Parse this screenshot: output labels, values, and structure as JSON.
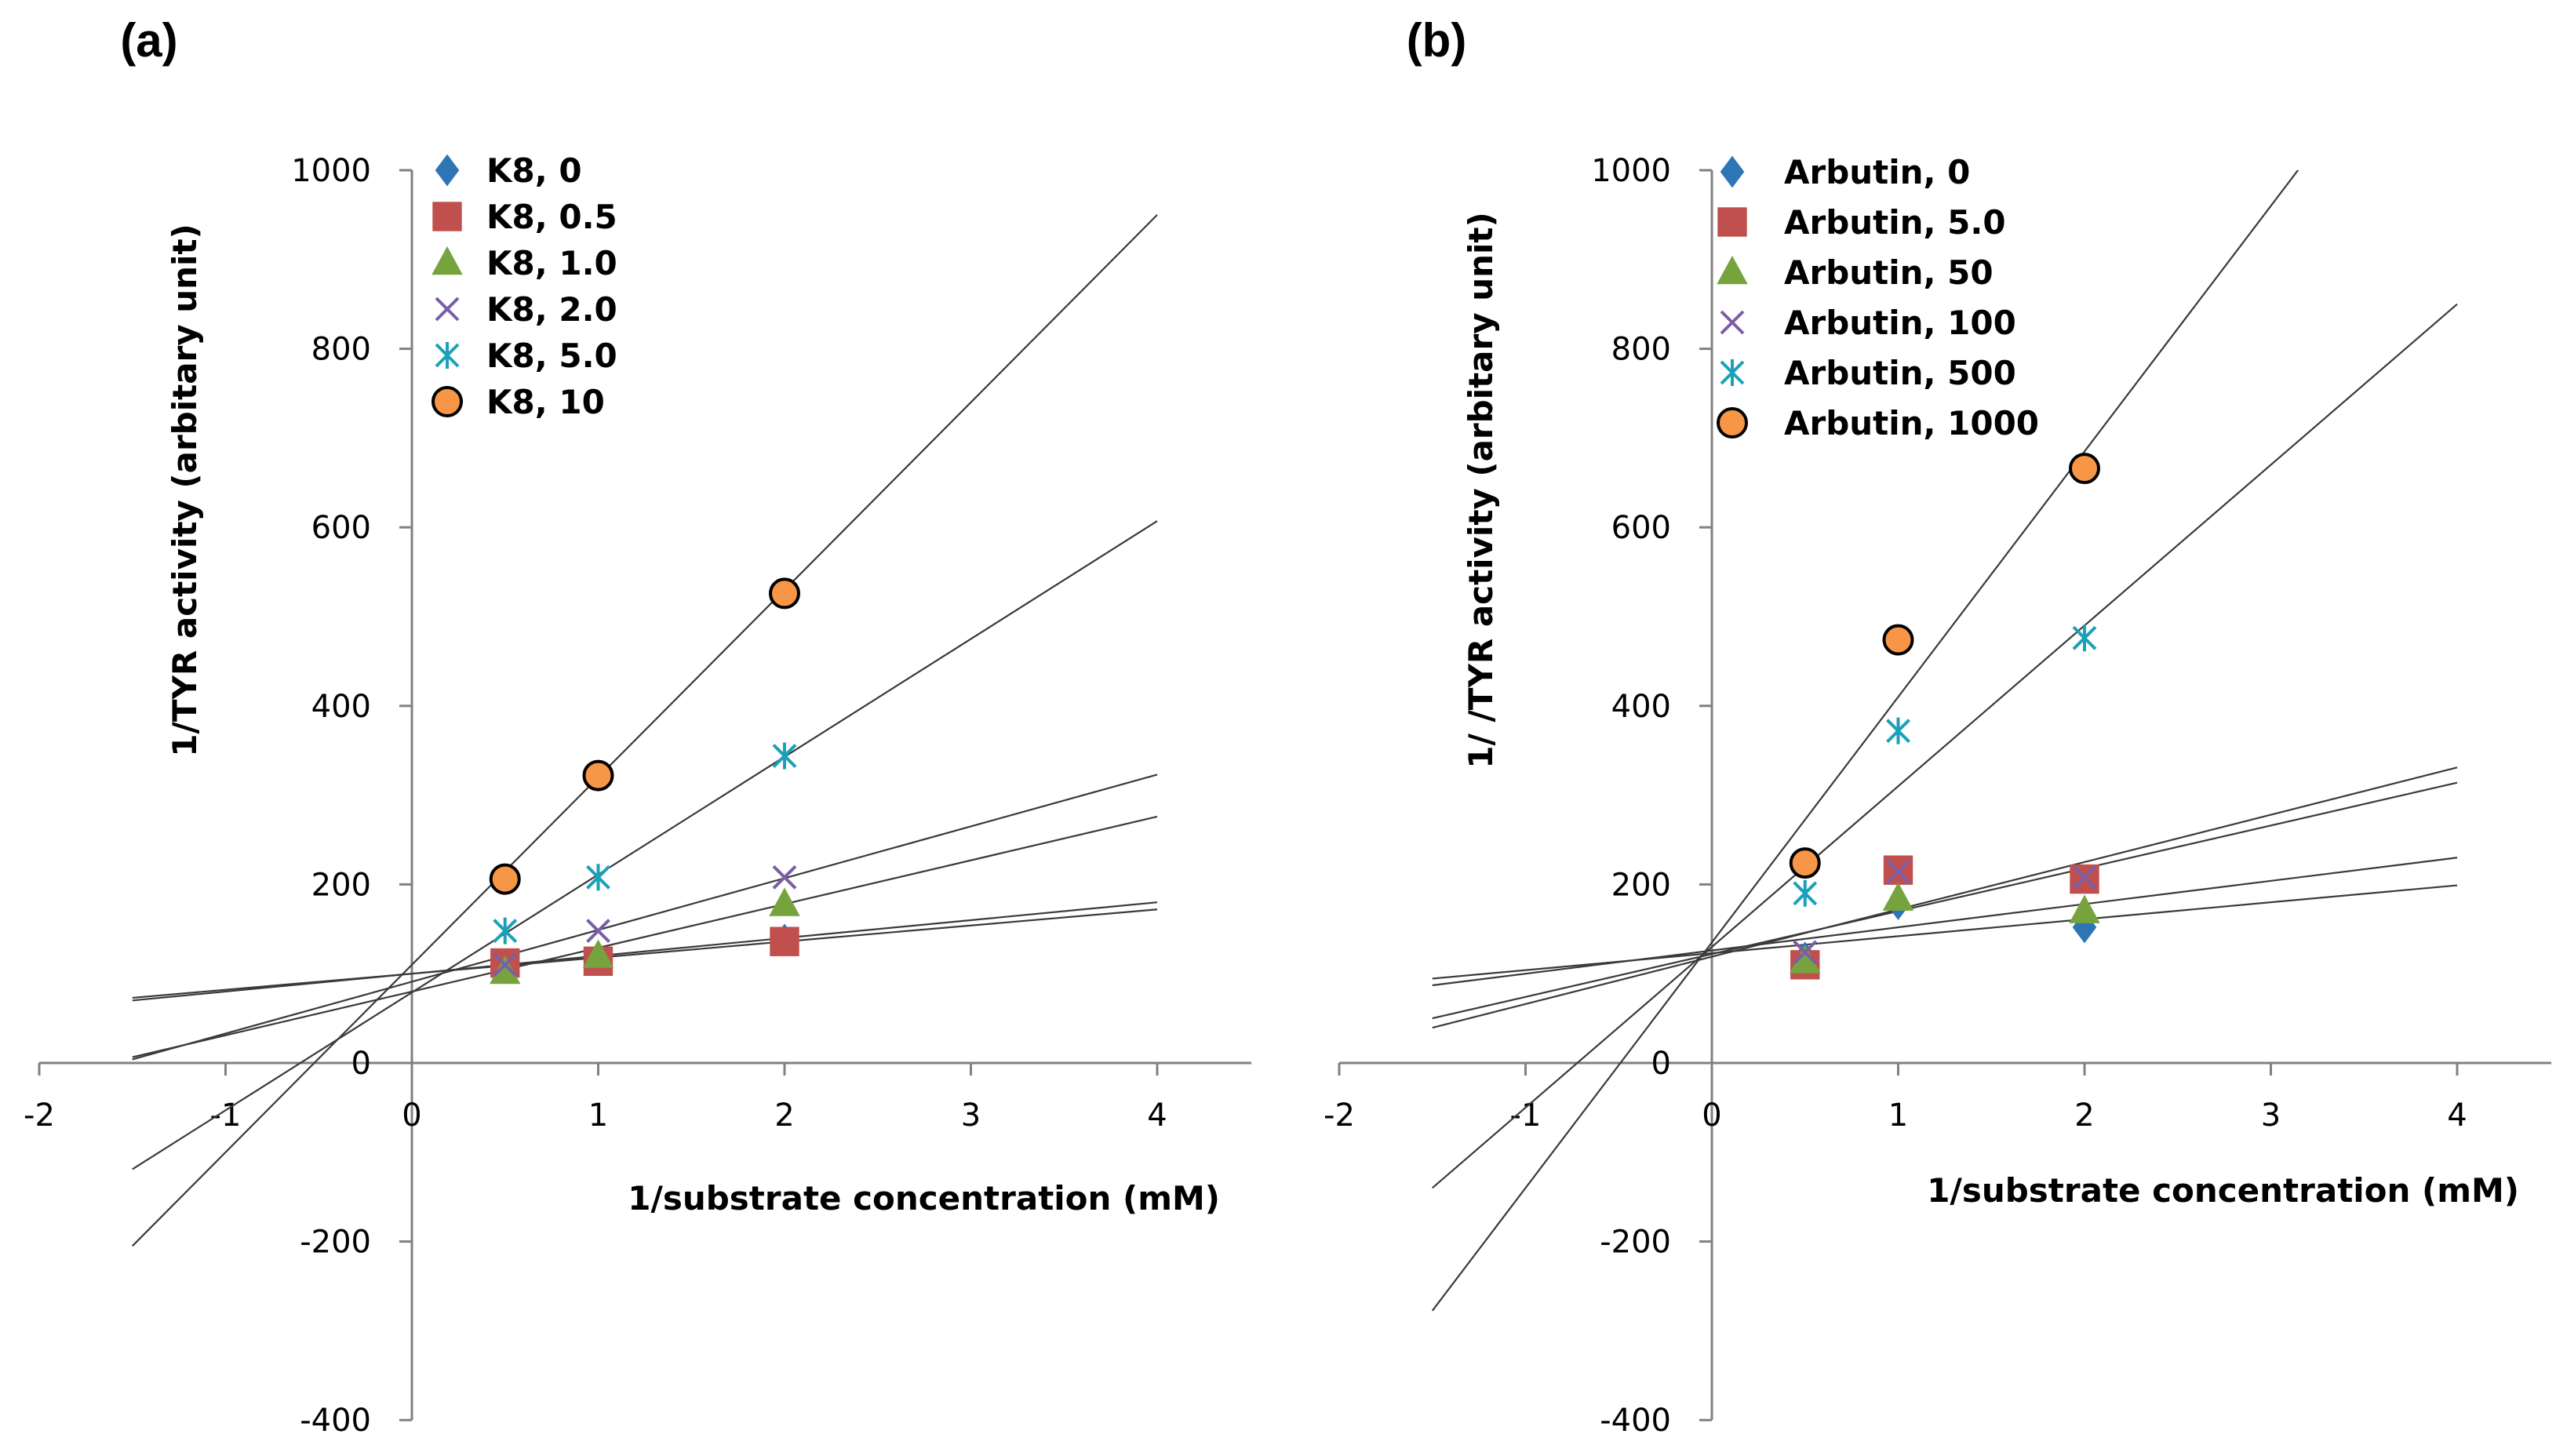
{
  "chart_data": [
    {
      "type": "scatter",
      "panel_label": "(a)",
      "xlabel": "1/substrate concentration (mM)",
      "ylabel": "1/TYR activity (arbitary unit)",
      "xlim": [
        -2,
        4
      ],
      "ylim": [
        -400,
        1000
      ],
      "xticks": [
        "-2",
        "-1",
        "0",
        "1",
        "2",
        "3",
        "4"
      ],
      "yticks": [
        "1000",
        "800",
        "600",
        "400",
        "200",
        "0",
        "-200",
        "-400"
      ],
      "legend_position": "top-left",
      "series": [
        {
          "name": "K8, 0",
          "marker": "diamond",
          "color": "#2e75b6",
          "x": [
            0.5,
            1,
            2
          ],
          "y": [
            106,
            118,
            138
          ],
          "fit": {
            "slope": 18,
            "intercept": 100
          }
        },
        {
          "name": "K8, 0.5",
          "marker": "square",
          "color": "#c0504d",
          "x": [
            0.5,
            1,
            2
          ],
          "y": [
            112,
            114,
            136
          ],
          "fit": {
            "slope": 20,
            "intercept": 100
          }
        },
        {
          "name": "K8, 1.0",
          "marker": "triangle",
          "color": "#77a33f",
          "x": [
            0.5,
            1,
            2
          ],
          "y": [
            102,
            120,
            178
          ],
          "fit": {
            "slope": 49,
            "intercept": 80
          }
        },
        {
          "name": "K8, 2.0",
          "marker": "x",
          "color": "#7b5ea7",
          "x": [
            0.5,
            1,
            2
          ],
          "y": [
            110,
            148,
            208
          ],
          "fit": {
            "slope": 58,
            "intercept": 91
          }
        },
        {
          "name": "K8, 5.0",
          "marker": "star",
          "color": "#1aa1b8",
          "x": [
            0.5,
            1,
            2
          ],
          "y": [
            148,
            208,
            344
          ],
          "fit": {
            "slope": 132,
            "intercept": 79
          }
        },
        {
          "name": "K8, 10",
          "marker": "circle",
          "color": "#f79646",
          "x": [
            0.5,
            1,
            2
          ],
          "y": [
            206,
            322,
            526
          ],
          "fit": {
            "slope": 210,
            "intercept": 110
          }
        }
      ]
    },
    {
      "type": "scatter",
      "panel_label": "(b)",
      "xlabel": "1/substrate concentration (mM)",
      "ylabel": "1/ /TYR activity (arbitary unit)",
      "xlim": [
        -2,
        4
      ],
      "ylim": [
        -400,
        1000
      ],
      "xticks": [
        "-2",
        "-1",
        "0",
        "1",
        "2",
        "3",
        "4"
      ],
      "yticks": [
        "1000",
        "800",
        "600",
        "400",
        "200",
        "0",
        "-200",
        "-400"
      ],
      "legend_position": "top-left",
      "series": [
        {
          "name": "Arbutin, 0",
          "marker": "diamond",
          "color": "#2e75b6",
          "x": [
            0.5,
            1,
            2
          ],
          "y": [
            118,
            178,
            152
          ],
          "fit": {
            "slope": 19,
            "intercept": 123
          }
        },
        {
          "name": "Arbutin, 5.0",
          "marker": "square",
          "color": "#c0504d",
          "x": [
            0.5,
            1,
            2
          ],
          "y": [
            110,
            216,
            206
          ],
          "fit": {
            "slope": 48,
            "intercept": 122
          }
        },
        {
          "name": "Arbutin, 50",
          "marker": "triangle",
          "color": "#77a33f",
          "x": [
            0.5,
            1,
            2
          ],
          "y": [
            114,
            184,
            170
          ],
          "fit": {
            "slope": 26,
            "intercept": 126
          }
        },
        {
          "name": "Arbutin, 100",
          "marker": "x",
          "color": "#7b5ea7",
          "x": [
            0.5,
            1,
            2
          ],
          "y": [
            124,
            214,
            208
          ],
          "fit": {
            "slope": 53,
            "intercept": 119
          }
        },
        {
          "name": "Arbutin, 500",
          "marker": "star",
          "color": "#1aa1b8",
          "x": [
            0.5,
            1,
            2
          ],
          "y": [
            190,
            372,
            476
          ],
          "fit": {
            "slope": 180,
            "intercept": 130
          }
        },
        {
          "name": "Arbutin, 1000",
          "marker": "circle",
          "color": "#f79646",
          "x": [
            0.5,
            1,
            2
          ],
          "y": [
            224,
            474,
            666
          ],
          "fit": {
            "slope": 275,
            "intercept": 135
          }
        }
      ]
    }
  ]
}
